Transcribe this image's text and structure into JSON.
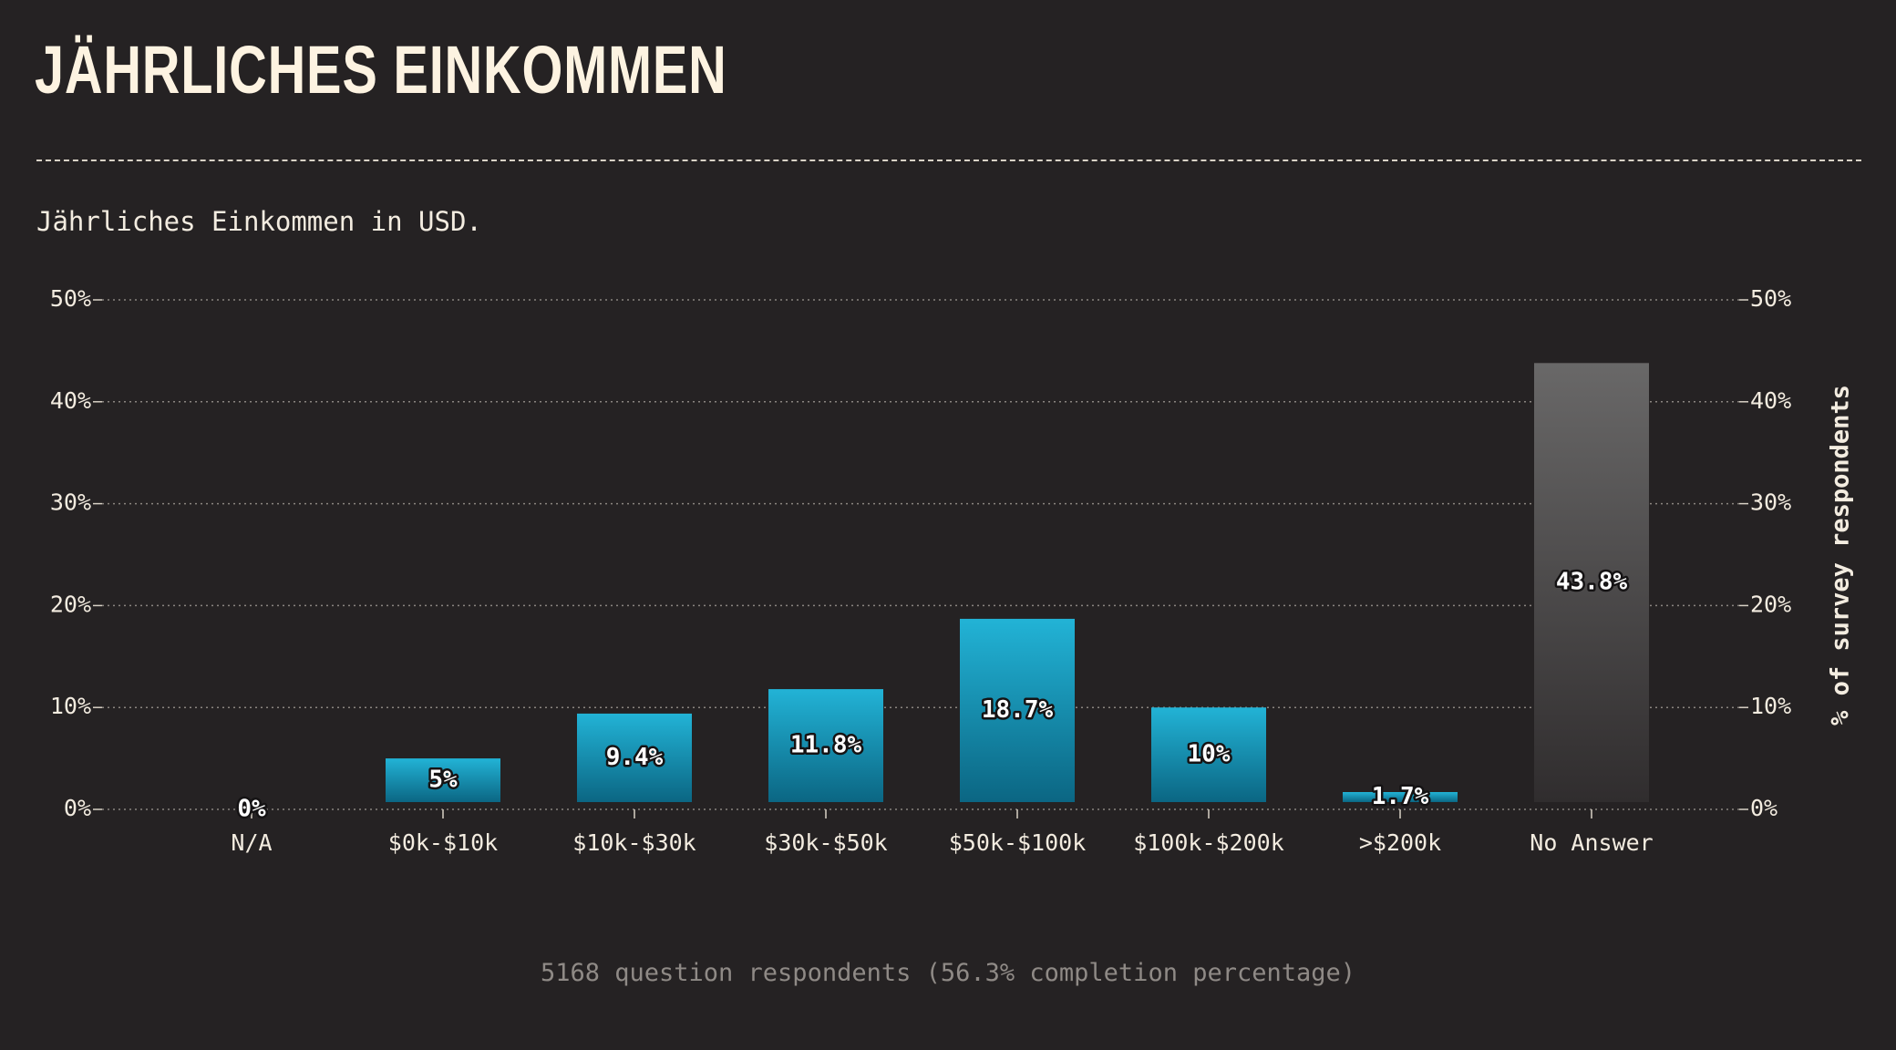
{
  "title": "JÄHRLICHES EINKOMMEN",
  "subtitle": "Jährliches Einkommen in USD.",
  "footer": "5168 question respondents (56.3% completion percentage)",
  "colors": {
    "background": "#252223",
    "bar_top": "#22b3d6",
    "bar_bottom": "#0b6683",
    "na_bar_top": "#696868",
    "na_bar_bottom": "#302d2e",
    "text": "#f3ece0",
    "grid": "#8a8580"
  },
  "chart_data": {
    "type": "bar",
    "categories": [
      "N/A",
      "$0k-$10k",
      "$10k-$30k",
      "$30k-$50k",
      "$50k-$100k",
      "$100k-$200k",
      ">$200k",
      "No Answer"
    ],
    "values": [
      0,
      5,
      9.4,
      11.8,
      18.7,
      10,
      1.7,
      43.8
    ],
    "data_labels": [
      "0%",
      "5%",
      "9.4%",
      "11.8%",
      "18.7%",
      "10%",
      "1.7%",
      "43.8%"
    ],
    "ylabel": "% of survey respondents",
    "ylim": [
      0,
      50
    ],
    "yticks": [
      0,
      10,
      20,
      30,
      40,
      50
    ],
    "ytick_labels": [
      "0%",
      "10%",
      "20%",
      "30%",
      "40%",
      "50%"
    ],
    "grid": true,
    "y_axis": "both sides"
  }
}
